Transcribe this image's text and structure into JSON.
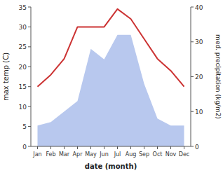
{
  "chart_data": {
    "type": "line",
    "xlabel": "date (month)",
    "ylabel": "max temp (C)",
    "y2label": "med. precipitation (kg/m2)",
    "categories": [
      "Jan",
      "Feb",
      "Mar",
      "Apr",
      "May",
      "Jun",
      "Jul",
      "Aug",
      "Sep",
      "Oct",
      "Nov",
      "Dec"
    ],
    "series": [
      {
        "type": "area",
        "axis": "y2",
        "color": "#b8c8ee",
        "values": [
          6,
          7,
          10,
          13,
          28,
          25,
          32,
          32,
          18,
          8,
          6,
          6
        ]
      },
      {
        "type": "line",
        "color": "#cc3333",
        "values": [
          15,
          18,
          22,
          30,
          30,
          30,
          34.5,
          32,
          27,
          22,
          19,
          15
        ]
      }
    ],
    "ylim": [
      0,
      35
    ],
    "yticks": [
      0,
      5,
      10,
      15,
      20,
      25,
      30,
      35
    ],
    "y2lim": [
      0,
      40
    ],
    "y2ticks": [
      0,
      10,
      20,
      30,
      40
    ],
    "grid": false
  }
}
